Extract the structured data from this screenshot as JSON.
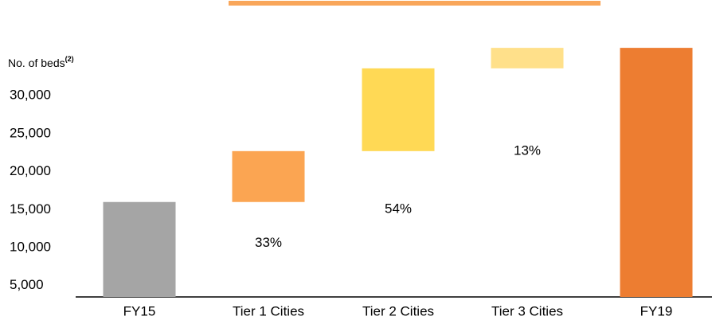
{
  "chart_data": {
    "type": "waterfall",
    "y_label": "No. of beds",
    "y_label_note": "(2)",
    "categories": [
      "FY15",
      "Tier 1 Cities",
      "Tier 2 Cities",
      "Tier 3 Cities",
      "FY19"
    ],
    "values": [
      16000,
      6700,
      10900,
      2700,
      36300
    ],
    "totals": [
      true,
      false,
      false,
      false,
      true
    ],
    "colors": [
      "#a5a5a5",
      "#fba552",
      "#ffd955",
      "#ffe08a",
      "#ed7d31"
    ],
    "share_labels": [
      null,
      "33%",
      "54%",
      "13%",
      null
    ],
    "ylim": [
      3500,
      42600
    ],
    "yticks": [
      {
        "value": 5000,
        "label": "5,000"
      },
      {
        "value": 10000,
        "label": "10,000"
      },
      {
        "value": 15000,
        "label": "15,000"
      },
      {
        "value": 20000,
        "label": "20,000"
      },
      {
        "value": 25000,
        "label": "25,000"
      },
      {
        "value": 30000,
        "label": "30,000"
      }
    ],
    "grid": false
  }
}
